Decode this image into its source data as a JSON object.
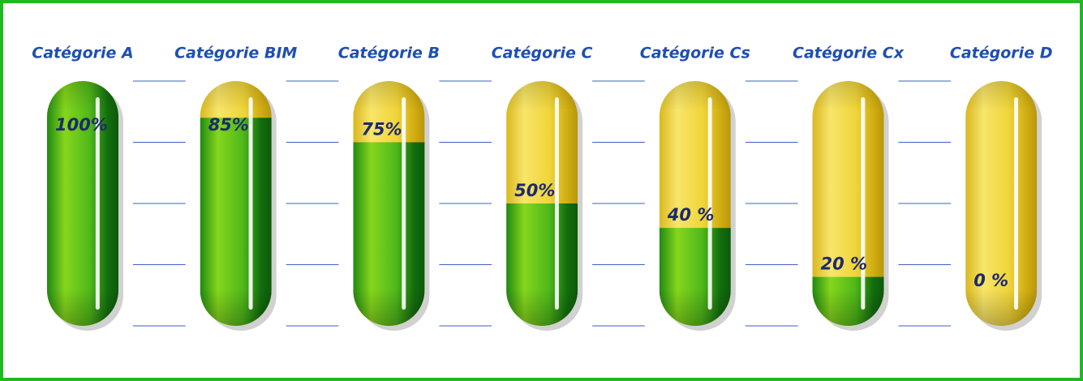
{
  "chart_data": {
    "type": "capsule",
    "categories": [
      "Catégorie A",
      "Catégorie BIM",
      "Catégorie B",
      "Catégorie C",
      "Catégorie Cs",
      "Catégorie Cx",
      "Catégorie D"
    ],
    "values": [
      100,
      85,
      75,
      50,
      40,
      20,
      0
    ],
    "value_labels": [
      "100%",
      "85%",
      "75%",
      "50%",
      "40 %",
      "20 %",
      "0 %"
    ],
    "color": "#4fb81a",
    "track_color": "#f2d93a",
    "ylim": [
      0,
      100
    ],
    "yticks": [
      0,
      25,
      50,
      75,
      100
    ],
    "grid": true
  }
}
